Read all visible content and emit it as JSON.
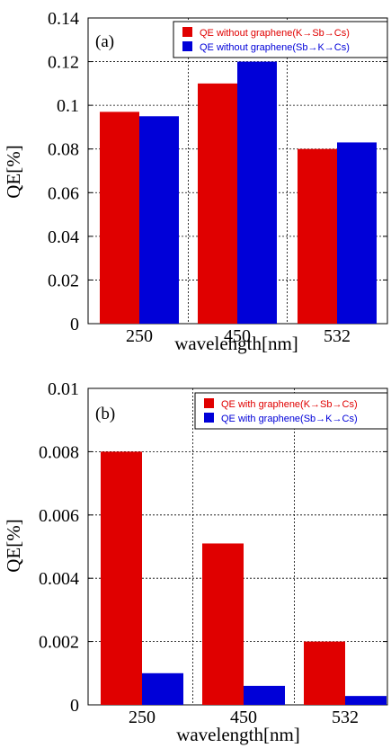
{
  "chart_data": [
    {
      "type": "bar",
      "panel_label": "(a)",
      "categories": [
        "250",
        "450",
        "532"
      ],
      "series": [
        {
          "name": "QE without graphene(K→Sb→Cs)",
          "values": [
            0.097,
            0.11,
            0.08
          ],
          "color": "#e00000"
        },
        {
          "name": "QE without graphene(Sb→K→Cs)",
          "values": [
            0.095,
            0.12,
            0.083
          ],
          "color": "#0000d8"
        }
      ],
      "xlabel": "wavelength[nm]",
      "ylabel": "QE[%]",
      "ylim": [
        0,
        0.14
      ],
      "yticks": [
        "0",
        "0.02",
        "0.04",
        "0.06",
        "0.08",
        "0.1",
        "0.12",
        "0.14"
      ],
      "grid": true,
      "legend_position": "top-right"
    },
    {
      "type": "bar",
      "panel_label": "(b)",
      "categories": [
        "250",
        "450",
        "532"
      ],
      "series": [
        {
          "name": "QE with graphene(K→Sb→Cs)",
          "values": [
            0.008,
            0.0051,
            0.002
          ],
          "color": "#e00000"
        },
        {
          "name": "QE with graphene(Sb→K→Cs)",
          "values": [
            0.001,
            0.0006,
            0.00028
          ],
          "color": "#0000d8"
        }
      ],
      "xlabel": "wavelength[nm]",
      "ylabel": "QE[%]",
      "ylim": [
        0,
        0.01
      ],
      "yticks": [
        "0",
        "0.002",
        "0.004",
        "0.006",
        "0.008",
        "0.01"
      ],
      "grid": true,
      "legend_position": "top-right"
    }
  ]
}
